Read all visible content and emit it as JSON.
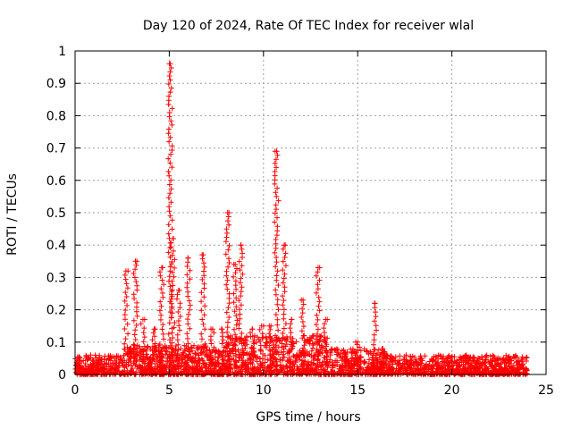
{
  "chart_data": {
    "type": "scatter",
    "title": "Day 120 of 2024, Rate Of TEC Index for receiver wlal",
    "xlabel": "GPS time / hours",
    "ylabel": "ROTI / TECUs",
    "xlim": [
      0,
      25
    ],
    "ylim": [
      0,
      1
    ],
    "x_ticks": [
      0,
      5,
      10,
      15,
      20,
      25
    ],
    "y_ticks": [
      0,
      0.1,
      0.2,
      0.3,
      0.4,
      0.5,
      0.6,
      0.7,
      0.8,
      0.9,
      1
    ],
    "x_tick_labels": [
      "0",
      "5",
      "10",
      "15",
      "20",
      "25"
    ],
    "y_tick_labels": [
      "0",
      "0.1",
      "0.2",
      "0.3",
      "0.4",
      "0.5",
      "0.6",
      "0.7",
      "0.8",
      "0.9",
      "1"
    ],
    "grid": true,
    "marker": "+",
    "color": "#ff0000",
    "baseline": {
      "x_range": [
        0,
        24
      ],
      "typical_max": 0.05,
      "segments": [
        {
          "x_range": [
            0,
            2.6
          ],
          "max": 0.06
        },
        {
          "x_range": [
            2.6,
            8
          ],
          "max": 0.09
        },
        {
          "x_range": [
            8,
            13.5
          ],
          "max": 0.12
        },
        {
          "x_range": [
            13.5,
            16.5
          ],
          "max": 0.08
        },
        {
          "x_range": [
            16.5,
            24
          ],
          "max": 0.06
        }
      ]
    },
    "spikes": [
      {
        "x": 2.7,
        "peak": 0.32
      },
      {
        "x": 3.2,
        "peak": 0.35
      },
      {
        "x": 3.6,
        "peak": 0.17
      },
      {
        "x": 4.2,
        "peak": 0.14
      },
      {
        "x": 4.6,
        "peak": 0.33
      },
      {
        "x": 5.05,
        "peak": 0.96
      },
      {
        "x": 5.2,
        "peak": 0.42
      },
      {
        "x": 5.5,
        "peak": 0.26
      },
      {
        "x": 6.0,
        "peak": 0.36
      },
      {
        "x": 6.8,
        "peak": 0.37
      },
      {
        "x": 7.3,
        "peak": 0.14
      },
      {
        "x": 7.8,
        "peak": 0.14
      },
      {
        "x": 8.1,
        "peak": 0.5
      },
      {
        "x": 8.5,
        "peak": 0.34
      },
      {
        "x": 8.8,
        "peak": 0.4
      },
      {
        "x": 9.4,
        "peak": 0.14
      },
      {
        "x": 9.9,
        "peak": 0.15
      },
      {
        "x": 10.4,
        "peak": 0.15
      },
      {
        "x": 10.7,
        "peak": 0.69
      },
      {
        "x": 11.1,
        "peak": 0.4
      },
      {
        "x": 11.5,
        "peak": 0.17
      },
      {
        "x": 12.1,
        "peak": 0.23
      },
      {
        "x": 12.9,
        "peak": 0.33
      },
      {
        "x": 13.3,
        "peak": 0.17
      },
      {
        "x": 15.0,
        "peak": 0.1
      },
      {
        "x": 15.9,
        "peak": 0.22
      },
      {
        "x": 16.3,
        "peak": 0.08
      }
    ]
  }
}
